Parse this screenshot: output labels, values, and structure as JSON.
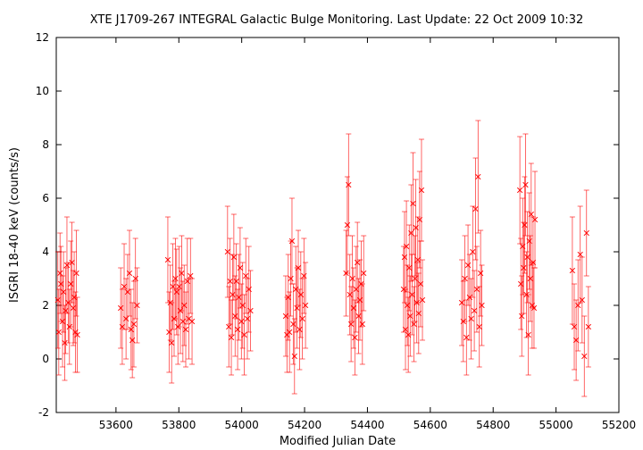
{
  "chart_data": {
    "type": "scatter",
    "title": "XTE J1709-267   INTEGRAL Galactic Bulge Monitoring.  Last Update: 22 Oct 2009 10:32",
    "xlabel": "Modified Julian Date",
    "ylabel": "ISGRI 18-40 keV (counts/s)",
    "xlim": [
      53410,
      55200
    ],
    "ylim": [
      -2,
      12
    ],
    "xticks": [
      53600,
      53800,
      54000,
      54200,
      54400,
      54600,
      54800,
      55000,
      55200
    ],
    "yticks": [
      -2,
      0,
      2,
      4,
      6,
      8,
      10,
      12
    ],
    "grid": false,
    "marker": "x",
    "series": [
      {
        "color": "#ff0000",
        "points": [
          {
            "x": 53415,
            "y": 2.2,
            "err": 1.8
          },
          {
            "x": 53418,
            "y": 1.0,
            "err": 1.6
          },
          {
            "x": 53422,
            "y": 3.2,
            "err": 1.5
          },
          {
            "x": 53425,
            "y": 2.8,
            "err": 1.4
          },
          {
            "x": 53430,
            "y": 1.4,
            "err": 1.7
          },
          {
            "x": 53433,
            "y": 2.5,
            "err": 1.5
          },
          {
            "x": 53437,
            "y": 0.6,
            "err": 1.4
          },
          {
            "x": 53440,
            "y": 1.8,
            "err": 1.6
          },
          {
            "x": 53444,
            "y": 3.5,
            "err": 1.8
          },
          {
            "x": 53448,
            "y": 2.1,
            "err": 1.5
          },
          {
            "x": 53452,
            "y": 1.2,
            "err": 1.4
          },
          {
            "x": 53456,
            "y": 2.8,
            "err": 1.6
          },
          {
            "x": 53460,
            "y": 3.6,
            "err": 1.5
          },
          {
            "x": 53464,
            "y": 1.9,
            "err": 1.4
          },
          {
            "x": 53467,
            "y": 2.3,
            "err": 1.7
          },
          {
            "x": 53471,
            "y": 1.0,
            "err": 1.5
          },
          {
            "x": 53474,
            "y": 3.2,
            "err": 1.6
          },
          {
            "x": 53477,
            "y": 0.9,
            "err": 1.4
          },
          {
            "x": 53615,
            "y": 1.9,
            "err": 1.5
          },
          {
            "x": 53620,
            "y": 1.2,
            "err": 1.4
          },
          {
            "x": 53626,
            "y": 2.7,
            "err": 1.6
          },
          {
            "x": 53632,
            "y": 1.5,
            "err": 1.5
          },
          {
            "x": 53637,
            "y": 2.5,
            "err": 1.4
          },
          {
            "x": 53643,
            "y": 3.2,
            "err": 1.6
          },
          {
            "x": 53648,
            "y": 1.1,
            "err": 1.5
          },
          {
            "x": 53652,
            "y": 0.7,
            "err": 1.4
          },
          {
            "x": 53657,
            "y": 1.3,
            "err": 1.6
          },
          {
            "x": 53662,
            "y": 3.0,
            "err": 1.5
          },
          {
            "x": 53667,
            "y": 2.0,
            "err": 1.4
          },
          {
            "x": 53765,
            "y": 3.7,
            "err": 1.6
          },
          {
            "x": 53769,
            "y": 1.0,
            "err": 1.5
          },
          {
            "x": 53773,
            "y": 2.1,
            "err": 1.4
          },
          {
            "x": 53777,
            "y": 0.6,
            "err": 1.5
          },
          {
            "x": 53781,
            "y": 2.7,
            "err": 1.6
          },
          {
            "x": 53785,
            "y": 1.5,
            "err": 1.4
          },
          {
            "x": 53789,
            "y": 3.0,
            "err": 1.5
          },
          {
            "x": 53793,
            "y": 2.5,
            "err": 1.6
          },
          {
            "x": 53797,
            "y": 1.2,
            "err": 1.4
          },
          {
            "x": 53801,
            "y": 2.7,
            "err": 1.5
          },
          {
            "x": 53805,
            "y": 1.8,
            "err": 1.6
          },
          {
            "x": 53809,
            "y": 3.2,
            "err": 1.4
          },
          {
            "x": 53813,
            "y": 1.4,
            "err": 1.5
          },
          {
            "x": 53817,
            "y": 2.0,
            "err": 1.5
          },
          {
            "x": 53822,
            "y": 1.1,
            "err": 1.4
          },
          {
            "x": 53827,
            "y": 2.9,
            "err": 1.6
          },
          {
            "x": 53832,
            "y": 1.5,
            "err": 1.5
          },
          {
            "x": 53837,
            "y": 3.1,
            "err": 1.4
          },
          {
            "x": 53842,
            "y": 1.4,
            "err": 1.6
          },
          {
            "x": 53955,
            "y": 4.0,
            "err": 1.7
          },
          {
            "x": 53959,
            "y": 1.2,
            "err": 1.5
          },
          {
            "x": 53963,
            "y": 2.9,
            "err": 1.6
          },
          {
            "x": 53967,
            "y": 0.8,
            "err": 1.4
          },
          {
            "x": 53971,
            "y": 2.4,
            "err": 1.5
          },
          {
            "x": 53975,
            "y": 3.8,
            "err": 1.6
          },
          {
            "x": 53979,
            "y": 1.6,
            "err": 1.5
          },
          {
            "x": 53983,
            "y": 2.9,
            "err": 1.4
          },
          {
            "x": 53987,
            "y": 1.1,
            "err": 1.5
          },
          {
            "x": 53991,
            "y": 2.3,
            "err": 1.6
          },
          {
            "x": 53995,
            "y": 3.4,
            "err": 1.5
          },
          {
            "x": 53999,
            "y": 1.4,
            "err": 1.4
          },
          {
            "x": 54003,
            "y": 2.0,
            "err": 1.6
          },
          {
            "x": 54008,
            "y": 0.9,
            "err": 1.5
          },
          {
            "x": 54013,
            "y": 3.1,
            "err": 1.4
          },
          {
            "x": 54018,
            "y": 1.5,
            "err": 1.5
          },
          {
            "x": 54023,
            "y": 2.6,
            "err": 1.6
          },
          {
            "x": 54028,
            "y": 1.8,
            "err": 1.5
          },
          {
            "x": 54140,
            "y": 1.6,
            "err": 1.5
          },
          {
            "x": 54144,
            "y": 0.9,
            "err": 1.4
          },
          {
            "x": 54148,
            "y": 2.3,
            "err": 1.6
          },
          {
            "x": 54152,
            "y": 1.0,
            "err": 1.5
          },
          {
            "x": 54156,
            "y": 3.0,
            "err": 1.4
          },
          {
            "x": 54160,
            "y": 4.4,
            "err": 1.6
          },
          {
            "x": 54164,
            "y": 1.3,
            "err": 1.5
          },
          {
            "x": 54168,
            "y": 0.1,
            "err": 1.4
          },
          {
            "x": 54172,
            "y": 2.6,
            "err": 1.6
          },
          {
            "x": 54176,
            "y": 1.9,
            "err": 1.5
          },
          {
            "x": 54180,
            "y": 3.4,
            "err": 1.4
          },
          {
            "x": 54184,
            "y": 1.1,
            "err": 1.5
          },
          {
            "x": 54188,
            "y": 2.4,
            "err": 1.6
          },
          {
            "x": 54193,
            "y": 1.5,
            "err": 1.5
          },
          {
            "x": 54198,
            "y": 3.1,
            "err": 1.4
          },
          {
            "x": 54203,
            "y": 2.0,
            "err": 1.6
          },
          {
            "x": 54332,
            "y": 3.2,
            "err": 1.6
          },
          {
            "x": 54336,
            "y": 5.0,
            "err": 1.8
          },
          {
            "x": 54340,
            "y": 6.5,
            "err": 1.9
          },
          {
            "x": 54344,
            "y": 2.4,
            "err": 1.5
          },
          {
            "x": 54348,
            "y": 1.3,
            "err": 1.4
          },
          {
            "x": 54352,
            "y": 3.0,
            "err": 1.6
          },
          {
            "x": 54356,
            "y": 1.9,
            "err": 1.5
          },
          {
            "x": 54360,
            "y": 0.8,
            "err": 1.4
          },
          {
            "x": 54364,
            "y": 2.6,
            "err": 1.6
          },
          {
            "x": 54368,
            "y": 3.6,
            "err": 1.5
          },
          {
            "x": 54372,
            "y": 1.6,
            "err": 1.4
          },
          {
            "x": 54376,
            "y": 2.2,
            "err": 1.5
          },
          {
            "x": 54380,
            "y": 2.8,
            "err": 1.6
          },
          {
            "x": 54384,
            "y": 1.3,
            "err": 1.5
          },
          {
            "x": 54388,
            "y": 3.2,
            "err": 1.4
          },
          {
            "x": 54515,
            "y": 2.6,
            "err": 1.6
          },
          {
            "x": 54518,
            "y": 3.8,
            "err": 1.7
          },
          {
            "x": 54521,
            "y": 1.1,
            "err": 1.5
          },
          {
            "x": 54524,
            "y": 4.2,
            "err": 1.7
          },
          {
            "x": 54527,
            "y": 2.0,
            "err": 1.5
          },
          {
            "x": 54530,
            "y": 0.9,
            "err": 1.4
          },
          {
            "x": 54533,
            "y": 3.4,
            "err": 1.6
          },
          {
            "x": 54536,
            "y": 1.6,
            "err": 1.5
          },
          {
            "x": 54539,
            "y": 4.7,
            "err": 1.8
          },
          {
            "x": 54542,
            "y": 2.4,
            "err": 1.5
          },
          {
            "x": 54545,
            "y": 5.8,
            "err": 1.9
          },
          {
            "x": 54548,
            "y": 1.3,
            "err": 1.4
          },
          {
            "x": 54551,
            "y": 3.0,
            "err": 1.6
          },
          {
            "x": 54554,
            "y": 4.9,
            "err": 1.8
          },
          {
            "x": 54557,
            "y": 2.1,
            "err": 1.5
          },
          {
            "x": 54560,
            "y": 3.7,
            "err": 1.6
          },
          {
            "x": 54563,
            "y": 1.7,
            "err": 1.5
          },
          {
            "x": 54566,
            "y": 5.2,
            "err": 1.8
          },
          {
            "x": 54569,
            "y": 2.8,
            "err": 1.6
          },
          {
            "x": 54572,
            "y": 6.3,
            "err": 1.9
          },
          {
            "x": 54575,
            "y": 2.2,
            "err": 1.5
          },
          {
            "x": 54700,
            "y": 2.1,
            "err": 1.6
          },
          {
            "x": 54705,
            "y": 1.4,
            "err": 1.5
          },
          {
            "x": 54710,
            "y": 3.0,
            "err": 1.6
          },
          {
            "x": 54715,
            "y": 0.8,
            "err": 1.4
          },
          {
            "x": 54720,
            "y": 3.5,
            "err": 1.5
          },
          {
            "x": 54725,
            "y": 2.3,
            "err": 1.6
          },
          {
            "x": 54730,
            "y": 1.5,
            "err": 1.5
          },
          {
            "x": 54735,
            "y": 4.0,
            "err": 1.7
          },
          {
            "x": 54740,
            "y": 1.8,
            "err": 1.5
          },
          {
            "x": 54744,
            "y": 5.6,
            "err": 1.9
          },
          {
            "x": 54748,
            "y": 2.6,
            "err": 1.6
          },
          {
            "x": 54752,
            "y": 6.8,
            "err": 2.1
          },
          {
            "x": 54756,
            "y": 1.2,
            "err": 1.5
          },
          {
            "x": 54760,
            "y": 3.2,
            "err": 1.6
          },
          {
            "x": 54764,
            "y": 2.0,
            "err": 1.5
          },
          {
            "x": 54885,
            "y": 6.3,
            "err": 2.0
          },
          {
            "x": 54888,
            "y": 2.8,
            "err": 1.7
          },
          {
            "x": 54891,
            "y": 1.6,
            "err": 1.5
          },
          {
            "x": 54894,
            "y": 4.2,
            "err": 1.8
          },
          {
            "x": 54897,
            "y": 3.4,
            "err": 1.7
          },
          {
            "x": 54900,
            "y": 5.0,
            "err": 1.8
          },
          {
            "x": 54903,
            "y": 6.5,
            "err": 1.9
          },
          {
            "x": 54906,
            "y": 2.4,
            "err": 1.6
          },
          {
            "x": 54909,
            "y": 3.8,
            "err": 1.7
          },
          {
            "x": 54912,
            "y": 0.9,
            "err": 1.5
          },
          {
            "x": 54915,
            "y": 4.4,
            "err": 1.8
          },
          {
            "x": 54918,
            "y": 3.0,
            "err": 1.6
          },
          {
            "x": 54921,
            "y": 5.4,
            "err": 1.9
          },
          {
            "x": 54924,
            "y": 2.0,
            "err": 1.6
          },
          {
            "x": 54927,
            "y": 3.6,
            "err": 1.7
          },
          {
            "x": 54930,
            "y": 1.9,
            "err": 1.5
          },
          {
            "x": 54933,
            "y": 5.2,
            "err": 1.8
          },
          {
            "x": 55052,
            "y": 3.3,
            "err": 2.0
          },
          {
            "x": 55058,
            "y": 1.2,
            "err": 1.6
          },
          {
            "x": 55064,
            "y": 0.7,
            "err": 1.5
          },
          {
            "x": 55070,
            "y": 2.0,
            "err": 1.7
          },
          {
            "x": 55077,
            "y": 3.9,
            "err": 1.8
          },
          {
            "x": 55083,
            "y": 2.2,
            "err": 1.6
          },
          {
            "x": 55090,
            "y": 0.1,
            "err": 1.5
          },
          {
            "x": 55097,
            "y": 4.7,
            "err": 1.6
          },
          {
            "x": 55103,
            "y": 1.2,
            "err": 1.5
          }
        ]
      }
    ]
  }
}
